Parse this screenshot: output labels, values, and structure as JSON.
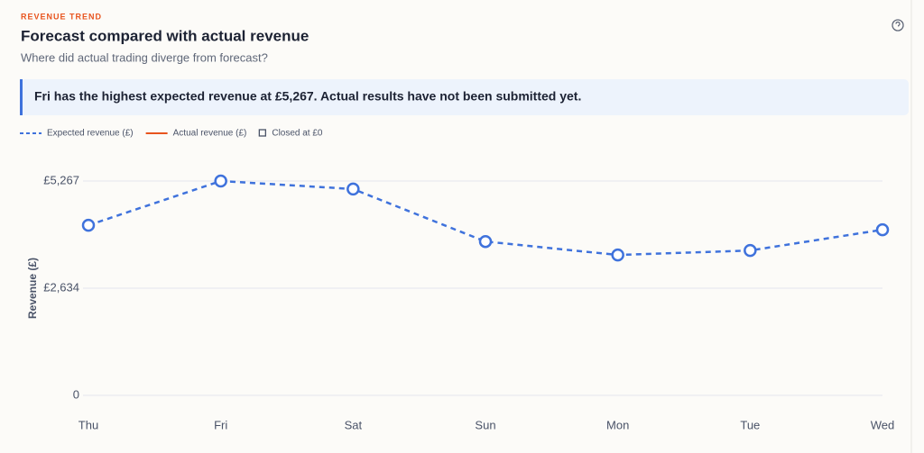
{
  "chart_data": {
    "type": "line",
    "eyebrow": "REVENUE TREND",
    "title": "Forecast compared with actual revenue",
    "subtitle": "Where did actual trading diverge from forecast?",
    "callout": "Fri has the highest expected revenue at £5,267. Actual results have not been submitted yet.",
    "y_label": "Revenue (£)",
    "categories": [
      "Thu",
      "Fri",
      "Sat",
      "Sun",
      "Mon",
      "Tue",
      "Wed"
    ],
    "series": [
      {
        "name": "Expected revenue (£)",
        "color": "#3f72dc",
        "dashed": true,
        "values": [
          4180,
          5267,
          5070,
          3780,
          3450,
          3560,
          4070
        ]
      },
      {
        "name": "Actual revenue (£)",
        "color": "#e8541e",
        "dashed": false,
        "values": [
          null,
          null,
          null,
          null,
          null,
          null,
          null
        ]
      }
    ],
    "closed_label": "Closed at £0",
    "ylim": [
      0,
      5267
    ],
    "yticks": [
      0,
      {
        "value": 2634,
        "label": "£2,634"
      },
      {
        "value": 5267,
        "label": "£5,267"
      }
    ],
    "grid": true
  }
}
